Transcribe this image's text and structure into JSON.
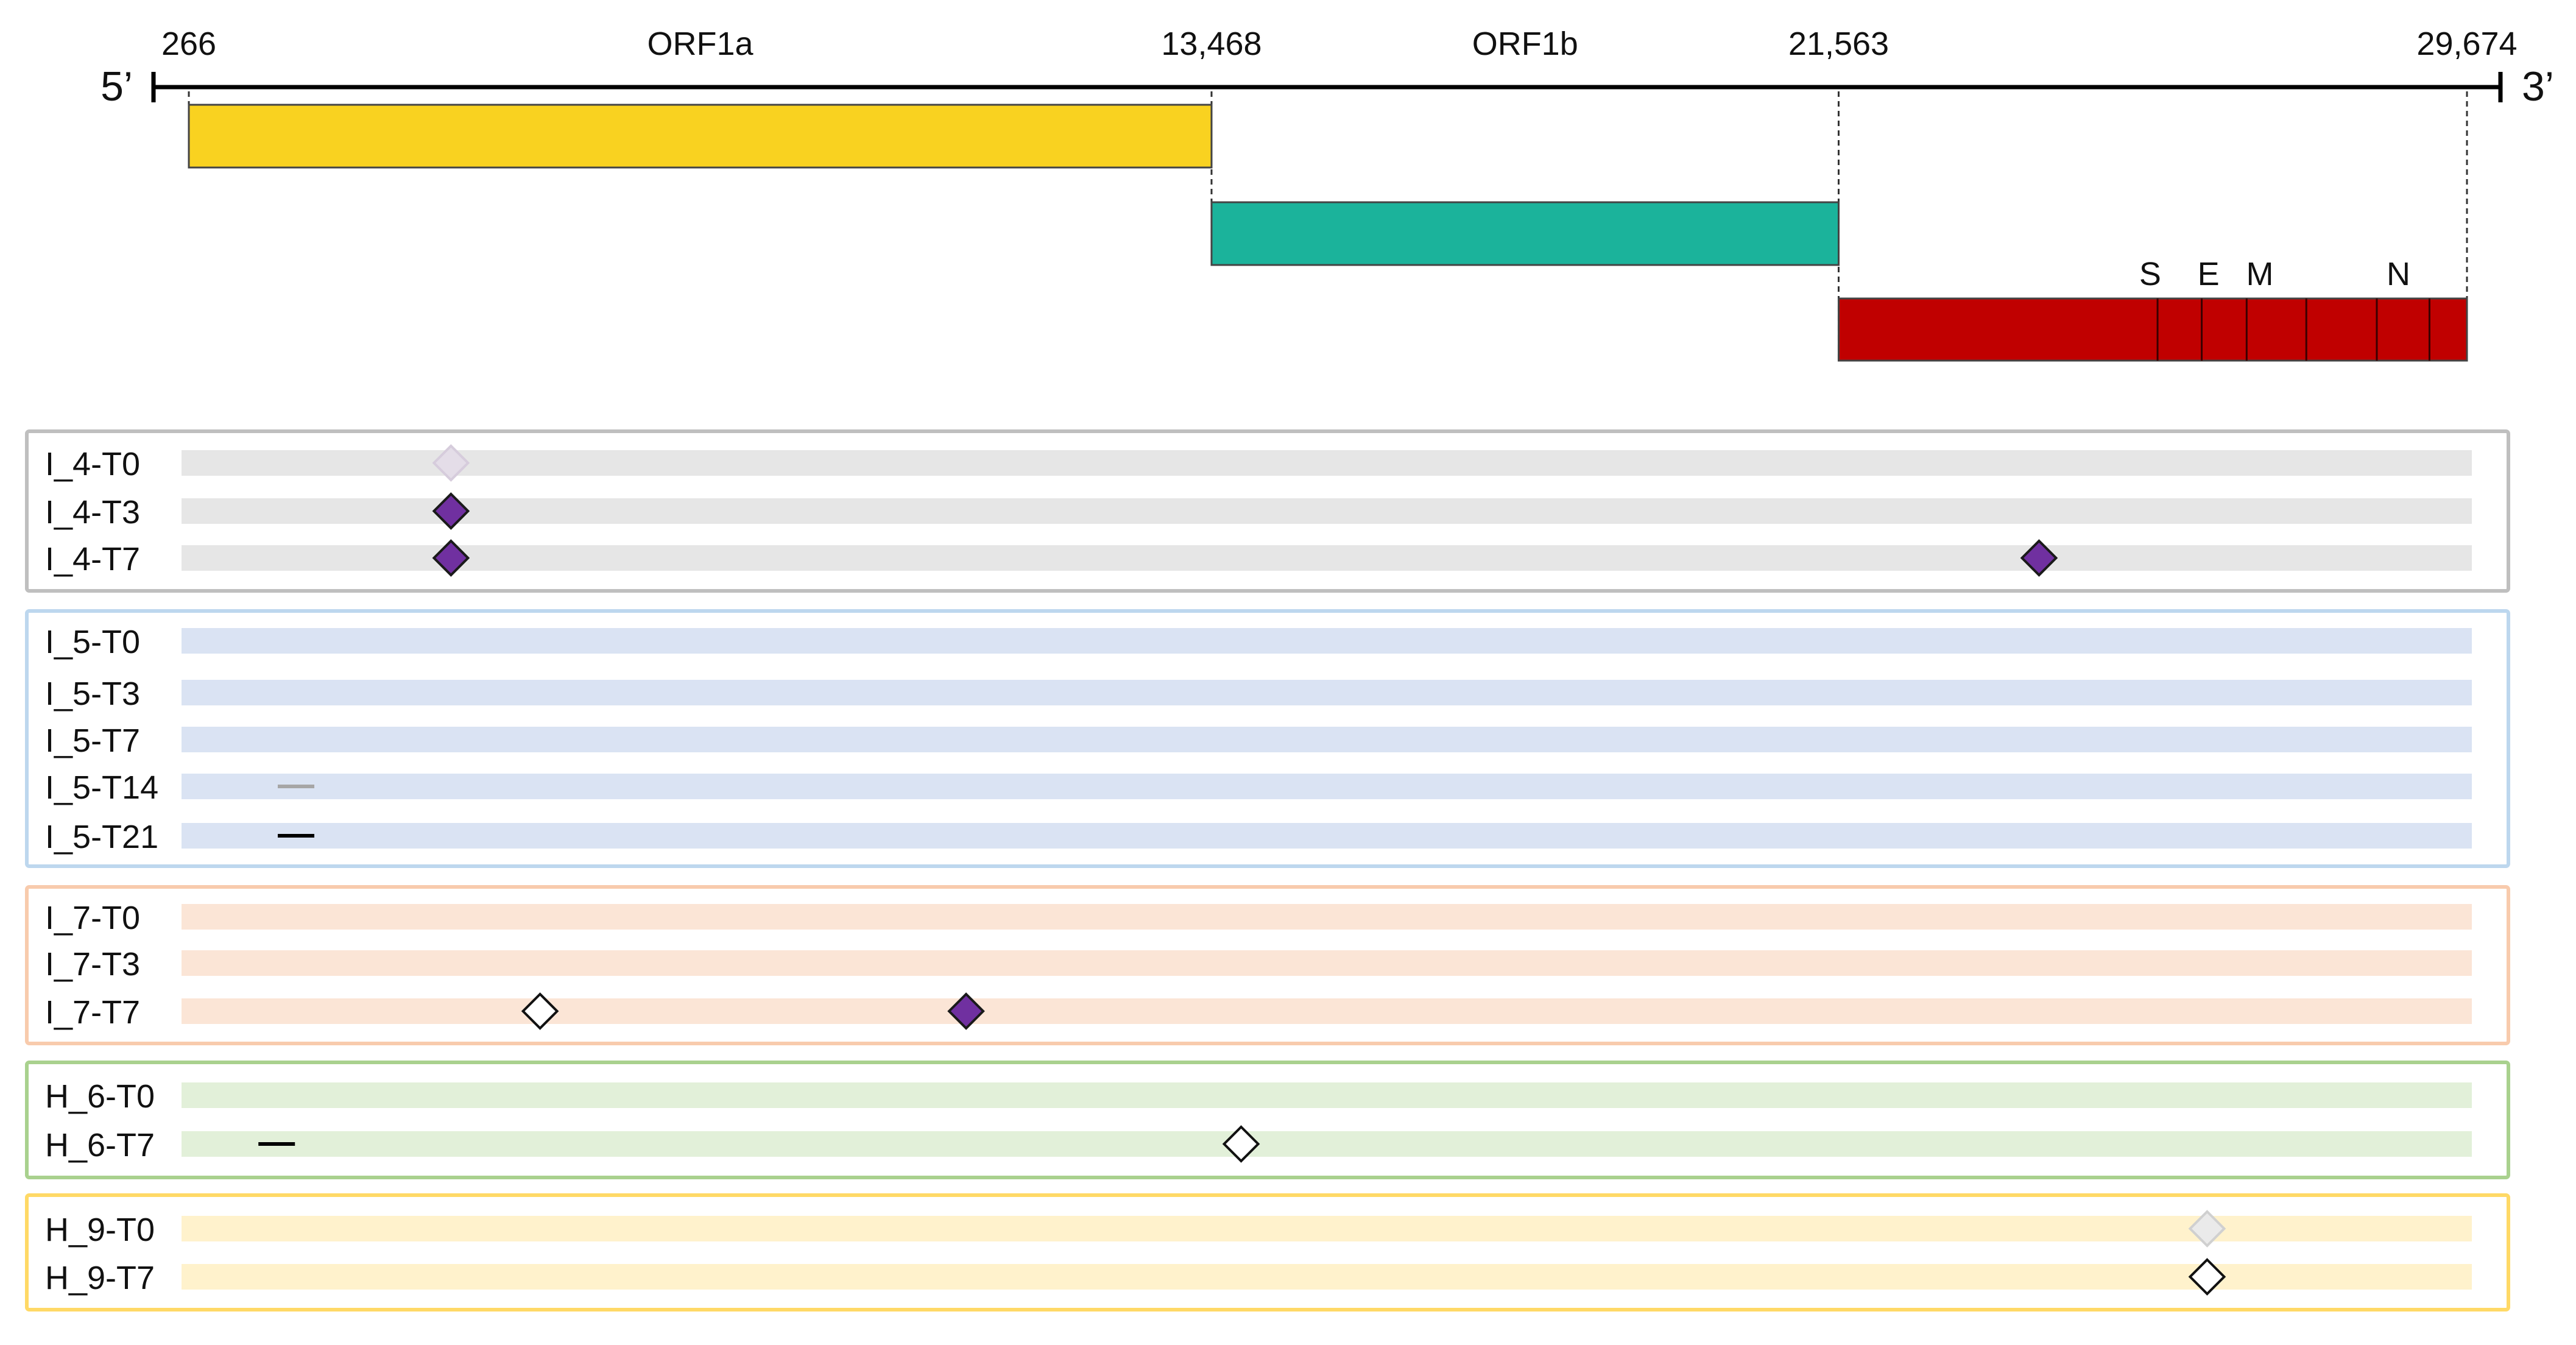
{
  "genome": {
    "five_prime": "5’",
    "three_prime": "3’",
    "ticks": [
      {
        "label": "266",
        "pos": 266
      },
      {
        "label": "13,468",
        "pos": 13468
      },
      {
        "label": "21,563",
        "pos": 21563
      },
      {
        "label": "29,674",
        "pos": 29674
      }
    ],
    "orfs": [
      {
        "label": "ORF1a",
        "start": 266,
        "end": 13468,
        "color": "#F9D220"
      },
      {
        "label": "ORF1b",
        "start": 13468,
        "end": 21563,
        "color": "#1BB39B"
      },
      {
        "label": "",
        "start": 21563,
        "end": 29674,
        "color": "#C00000"
      }
    ],
    "structural_genes": [
      {
        "label": "S",
        "pos": 25584
      },
      {
        "label": "E",
        "pos": 26337
      },
      {
        "label": "M",
        "pos": 27000
      },
      {
        "label": "N",
        "pos": 28789
      }
    ],
    "structural_dividers": [
      25680,
      26250,
      26830,
      27600,
      28510,
      29190
    ]
  },
  "groups": [
    {
      "id": "I_4",
      "border": "#BFBFBF",
      "track": "#E6E6E6",
      "samples": [
        {
          "label": "I_4-T0",
          "marks": [
            {
              "type": "diamond",
              "style": "faint",
              "pos": 3650
            }
          ]
        },
        {
          "label": "I_4-T3",
          "marks": [
            {
              "type": "diamond",
              "style": "filled",
              "pos": 3650
            }
          ]
        },
        {
          "label": "I_4-T7",
          "marks": [
            {
              "type": "diamond",
              "style": "filled",
              "pos": 3650
            },
            {
              "type": "diamond",
              "style": "filled",
              "pos": 24150
            }
          ]
        }
      ]
    },
    {
      "id": "I_5",
      "border": "#BDD7EE",
      "track": "#DAE3F3",
      "samples": [
        {
          "label": "I_5-T0",
          "marks": []
        },
        {
          "label": "I_5-T3",
          "marks": []
        },
        {
          "label": "I_5-T7",
          "marks": []
        },
        {
          "label": "I_5-T14",
          "marks": [
            {
              "type": "dash",
              "style": "faint",
              "pos": 1650
            }
          ]
        },
        {
          "label": "I_5-T21",
          "marks": [
            {
              "type": "dash",
              "style": "dark",
              "pos": 1650
            }
          ]
        }
      ]
    },
    {
      "id": "I_7",
      "border": "#F8CBAD",
      "track": "#FBE5D6",
      "samples": [
        {
          "label": "I_7-T0",
          "marks": []
        },
        {
          "label": "I_7-T3",
          "marks": []
        },
        {
          "label": "I_7-T7",
          "marks": [
            {
              "type": "diamond",
              "style": "open",
              "pos": 4800
            },
            {
              "type": "diamond",
              "style": "filled",
              "pos": 10300
            }
          ]
        }
      ]
    },
    {
      "id": "H_6",
      "border": "#A9D18E",
      "track": "#E2F0D9",
      "samples": [
        {
          "label": "H_6-T0",
          "marks": []
        },
        {
          "label": "H_6-T7",
          "marks": [
            {
              "type": "dash",
              "style": "dark",
              "pos": 1400
            },
            {
              "type": "diamond",
              "style": "open",
              "pos": 13850
            }
          ]
        }
      ]
    },
    {
      "id": "H_9",
      "border": "#FFD966",
      "track": "#FFF2CC",
      "samples": [
        {
          "label": "H_9-T0",
          "marks": [
            {
              "type": "diamond",
              "style": "faint-open",
              "pos": 26320
            }
          ]
        },
        {
          "label": "H_9-T7",
          "marks": [
            {
              "type": "diamond",
              "style": "open",
              "pos": 26320
            }
          ]
        }
      ]
    }
  ],
  "colors": {
    "filled_diamond": "#7030A0",
    "faint_diamond": "#E4DDE8",
    "faint_open_diamond": "#EAEAEA",
    "dash_dark": "#000000",
    "dash_faint": "#A6A6A6"
  }
}
